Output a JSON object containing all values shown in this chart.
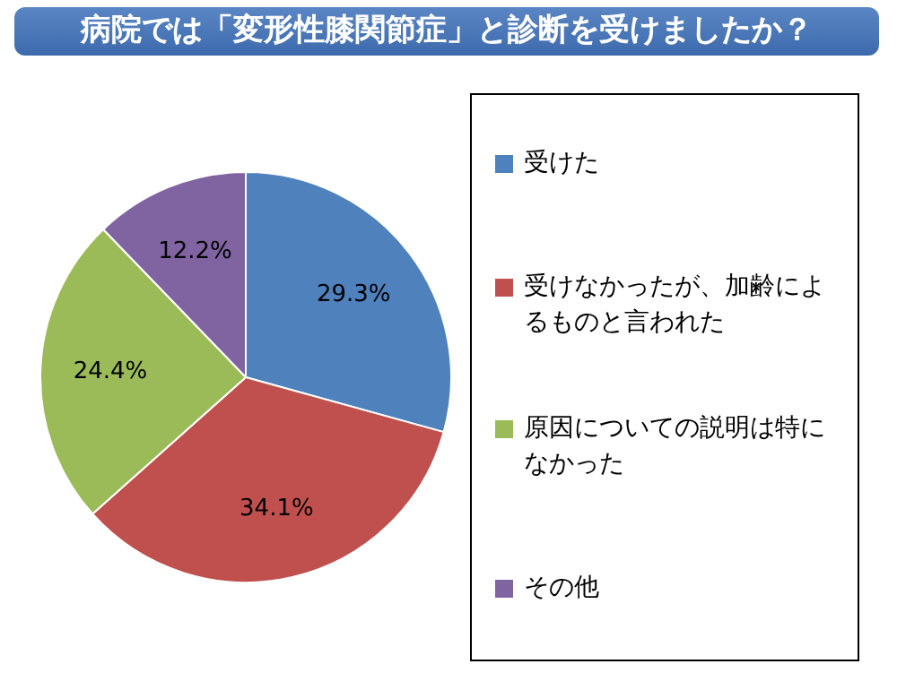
{
  "chart_data": {
    "type": "pie",
    "title": "病院では「変形性膝関節症」と診断を受けましたか？",
    "categories": [
      "受けた",
      "受けなかったが、加齢によるものと言われた",
      "原因についての説明は特になかった",
      "その他"
    ],
    "values": [
      29.3,
      34.1,
      24.4,
      12.2
    ],
    "colors": [
      "#4f81bd",
      "#c0504d",
      "#9bbb59",
      "#8064a2"
    ],
    "value_labels": [
      "29.3%",
      "34.1%",
      "24.4%",
      "12.2%"
    ],
    "legend": "right"
  }
}
